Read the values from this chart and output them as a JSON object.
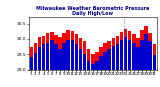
{
  "title": "Milwaukee Weather Barometric Pressure",
  "subtitle": "Daily High/Low",
  "highs": [
    29.72,
    29.85,
    30.05,
    30.08,
    30.18,
    30.22,
    30.12,
    30.05,
    30.18,
    30.28,
    30.25,
    30.15,
    30.02,
    29.92,
    29.68,
    29.52,
    29.58,
    29.72,
    29.85,
    29.92,
    30.02,
    30.08,
    30.22,
    30.32,
    30.25,
    30.15,
    30.02,
    30.28,
    30.42,
    30.18,
    29.82
  ],
  "lows": [
    29.42,
    29.55,
    29.72,
    29.82,
    29.88,
    29.95,
    29.82,
    29.68,
    29.88,
    29.98,
    29.95,
    29.82,
    29.68,
    29.52,
    29.28,
    29.18,
    29.28,
    29.45,
    29.58,
    29.68,
    29.78,
    29.82,
    29.95,
    30.05,
    29.95,
    29.85,
    29.72,
    29.98,
    30.15,
    29.92,
    29.48
  ],
  "ylim_min": 29.0,
  "ylim_max": 30.7,
  "yticks": [
    29.0,
    29.5,
    30.0,
    30.5
  ],
  "ytick_labels": [
    "29.0",
    "29.5",
    "30.0",
    "30.5"
  ],
  "high_color": "#FF0000",
  "low_color": "#0000CC",
  "bg_color": "#FFFFFF",
  "plot_bg": "#FFFFFF",
  "vline_pos": 22.5,
  "vline_color": "#5555FF",
  "title_color": "#000080",
  "n_days": 31
}
